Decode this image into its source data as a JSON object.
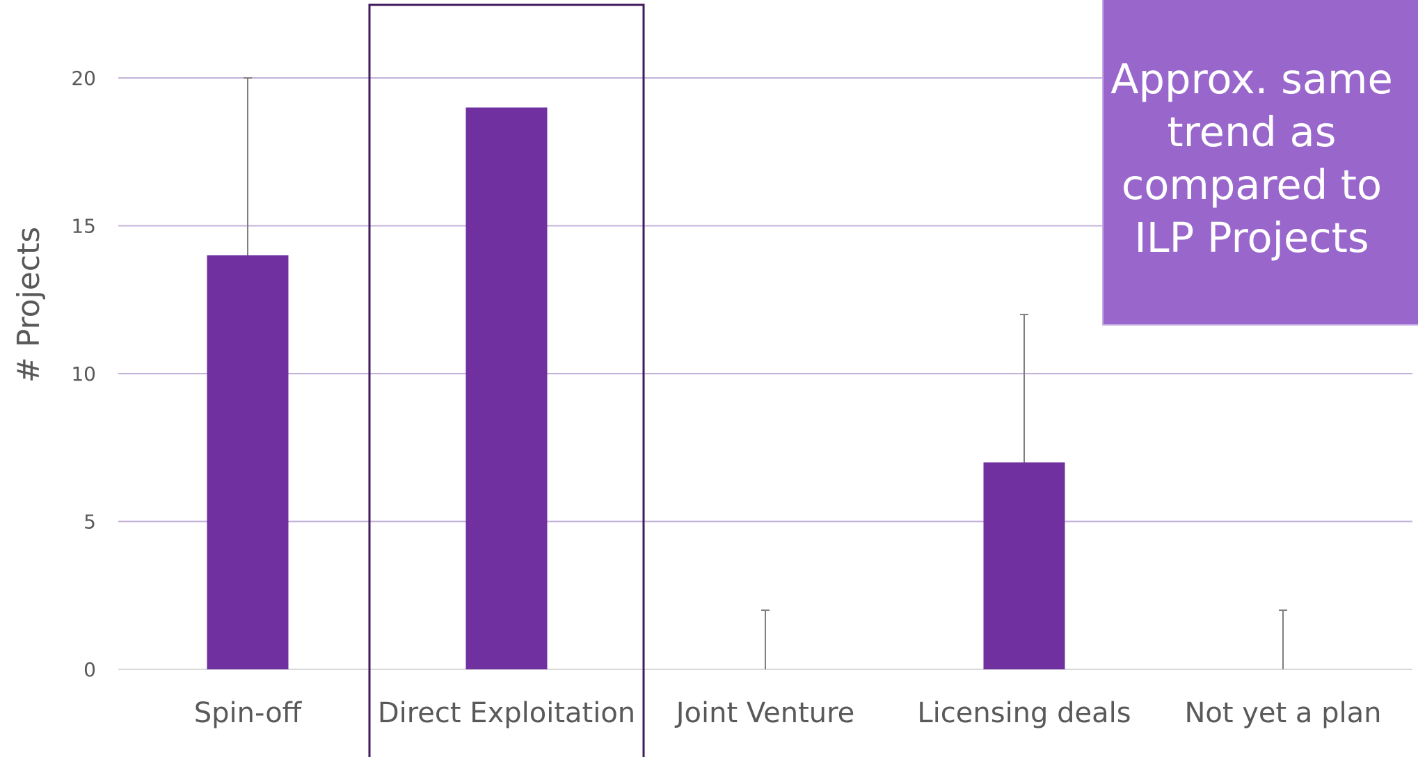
{
  "chart_data": {
    "type": "bar",
    "categories": [
      "Spin-off",
      "Direct Exploitation",
      "Joint Venture",
      "Licensing deals",
      "Not yet a plan"
    ],
    "values": [
      14,
      19,
      0,
      7,
      0
    ],
    "error_upper": [
      20,
      19,
      2,
      12,
      2
    ],
    "ylabel": "# Projects",
    "yticks": [
      0,
      5,
      10,
      15,
      20
    ],
    "ylim": [
      0,
      23
    ],
    "grid": true,
    "highlighted_category": "Direct Exploitation",
    "bar_color": "#7030a0",
    "grid_color": "#c3b1d9"
  },
  "callout": {
    "text": "Approx. same trend as compared to ILP Projects",
    "color": "#9966cc"
  }
}
